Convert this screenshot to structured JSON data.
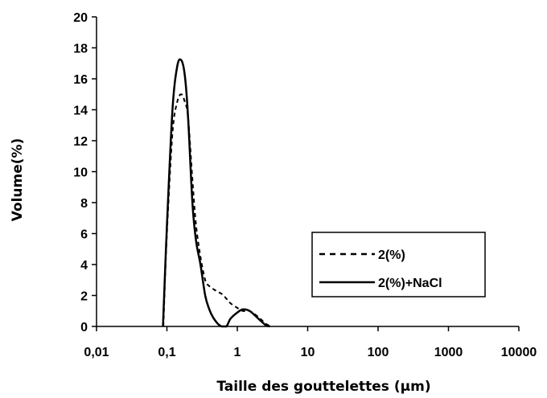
{
  "chart_data": {
    "type": "line",
    "title": "",
    "xlabel": "Taille des gouttelettes (µm)",
    "ylabel": "Volume(%)",
    "x_scale": "log",
    "xlim": [
      0.01,
      10000
    ],
    "ylim": [
      0,
      20
    ],
    "x_ticks": [
      0.01,
      0.1,
      1,
      10,
      100,
      1000,
      10000
    ],
    "x_tick_labels": [
      "0,01",
      "0,1",
      "1",
      "10",
      "100",
      "1000",
      "10000"
    ],
    "y_ticks": [
      0,
      2,
      4,
      6,
      8,
      10,
      12,
      14,
      16,
      18,
      20
    ],
    "y_tick_labels": [
      "0",
      "2",
      "4",
      "6",
      "8",
      "10",
      "12",
      "14",
      "16",
      "18",
      "20"
    ],
    "grid": false,
    "legend_position": "right",
    "series": [
      {
        "name": "2(%)",
        "style": "dashed",
        "color": "#000000",
        "x": [
          0.089,
          0.1,
          0.12,
          0.14,
          0.16,
          0.18,
          0.2,
          0.23,
          0.26,
          0.3,
          0.35,
          0.4,
          0.5,
          0.6,
          0.7,
          0.8,
          1.0,
          1.2,
          1.5,
          2.0,
          2.5,
          3.0
        ],
        "y": [
          0,
          6,
          12.5,
          14.5,
          15,
          14.5,
          13.5,
          9.5,
          6.5,
          4.5,
          3.0,
          2.6,
          2.3,
          2.1,
          1.8,
          1.5,
          1.2,
          1.0,
          1.0,
          0.6,
          0.2,
          0
        ]
      },
      {
        "name": "2(%)+NaCl",
        "style": "solid",
        "color": "#000000",
        "x": [
          0.088,
          0.1,
          0.12,
          0.14,
          0.16,
          0.18,
          0.2,
          0.23,
          0.26,
          0.3,
          0.35,
          0.4,
          0.45,
          0.5,
          0.55,
          0.6,
          0.7,
          0.8,
          1.0,
          1.2,
          1.5,
          2.0,
          2.5,
          2.9
        ],
        "y": [
          0,
          6.5,
          14,
          16.8,
          17.2,
          16.2,
          13.5,
          8.0,
          5.5,
          4.0,
          2.0,
          1.1,
          0.6,
          0.3,
          0.1,
          0,
          0,
          0.5,
          0.9,
          1.1,
          1.0,
          0.5,
          0.1,
          0
        ]
      }
    ]
  }
}
